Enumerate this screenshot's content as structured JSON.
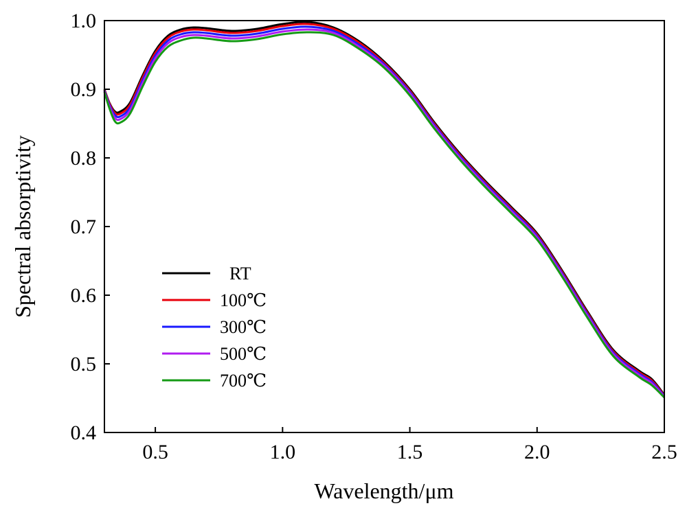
{
  "chart_data": {
    "type": "line",
    "xlabel": "Wavelength/μm",
    "ylabel": "Spectral absorptivity",
    "xlim": [
      0.3,
      2.5
    ],
    "ylim": [
      0.4,
      1.0
    ],
    "x_ticks": [
      "0.5",
      "1.0",
      "1.5",
      "2.0",
      "2.5"
    ],
    "x_tick_values": [
      0.5,
      1.0,
      1.5,
      2.0,
      2.5
    ],
    "y_ticks": [
      "0.4",
      "0.5",
      "0.6",
      "0.7",
      "0.8",
      "0.9",
      "1.0"
    ],
    "y_tick_values": [
      0.4,
      0.5,
      0.6,
      0.7,
      0.8,
      0.9,
      1.0
    ],
    "grid": false,
    "legend_position": "left-center",
    "x": [
      0.3,
      0.32,
      0.34,
      0.36,
      0.4,
      0.45,
      0.5,
      0.55,
      0.6,
      0.65,
      0.7,
      0.8,
      0.9,
      1.0,
      1.1,
      1.2,
      1.3,
      1.4,
      1.5,
      1.6,
      1.7,
      1.8,
      1.9,
      2.0,
      2.1,
      2.2,
      2.3,
      2.4,
      2.45,
      2.5
    ],
    "series": [
      {
        "name": "RT",
        "color": "#000000",
        "values": [
          0.9,
          0.88,
          0.868,
          0.867,
          0.88,
          0.92,
          0.956,
          0.978,
          0.987,
          0.99,
          0.989,
          0.985,
          0.988,
          0.995,
          0.998,
          0.99,
          0.97,
          0.94,
          0.9,
          0.85,
          0.805,
          0.765,
          0.728,
          0.69,
          0.635,
          0.575,
          0.52,
          0.49,
          0.478,
          0.455
        ]
      },
      {
        "name": "100℃",
        "color": "#e8000b",
        "values": [
          0.899,
          0.879,
          0.866,
          0.864,
          0.877,
          0.917,
          0.953,
          0.975,
          0.984,
          0.987,
          0.986,
          0.982,
          0.985,
          0.992,
          0.995,
          0.988,
          0.968,
          0.938,
          0.898,
          0.848,
          0.803,
          0.763,
          0.726,
          0.688,
          0.633,
          0.573,
          0.518,
          0.488,
          0.476,
          0.454
        ]
      },
      {
        "name": "300℃",
        "color": "#1a1aff",
        "values": [
          0.898,
          0.877,
          0.863,
          0.86,
          0.873,
          0.913,
          0.949,
          0.971,
          0.98,
          0.983,
          0.982,
          0.978,
          0.981,
          0.988,
          0.991,
          0.985,
          0.965,
          0.936,
          0.896,
          0.846,
          0.801,
          0.761,
          0.724,
          0.686,
          0.631,
          0.571,
          0.516,
          0.486,
          0.474,
          0.453
        ]
      },
      {
        "name": "500℃",
        "color": "#b01cf0",
        "values": [
          0.897,
          0.875,
          0.859,
          0.856,
          0.869,
          0.909,
          0.945,
          0.967,
          0.976,
          0.979,
          0.978,
          0.974,
          0.977,
          0.984,
          0.987,
          0.982,
          0.962,
          0.934,
          0.894,
          0.844,
          0.799,
          0.759,
          0.722,
          0.684,
          0.629,
          0.569,
          0.514,
          0.484,
          0.472,
          0.452
        ]
      },
      {
        "name": "700℃",
        "color": "#159a15",
        "values": [
          0.896,
          0.872,
          0.854,
          0.851,
          0.864,
          0.904,
          0.94,
          0.962,
          0.971,
          0.975,
          0.974,
          0.97,
          0.973,
          0.98,
          0.983,
          0.979,
          0.959,
          0.931,
          0.891,
          0.841,
          0.796,
          0.756,
          0.719,
          0.681,
          0.626,
          0.566,
          0.511,
          0.481,
          0.469,
          0.451
        ]
      }
    ]
  }
}
